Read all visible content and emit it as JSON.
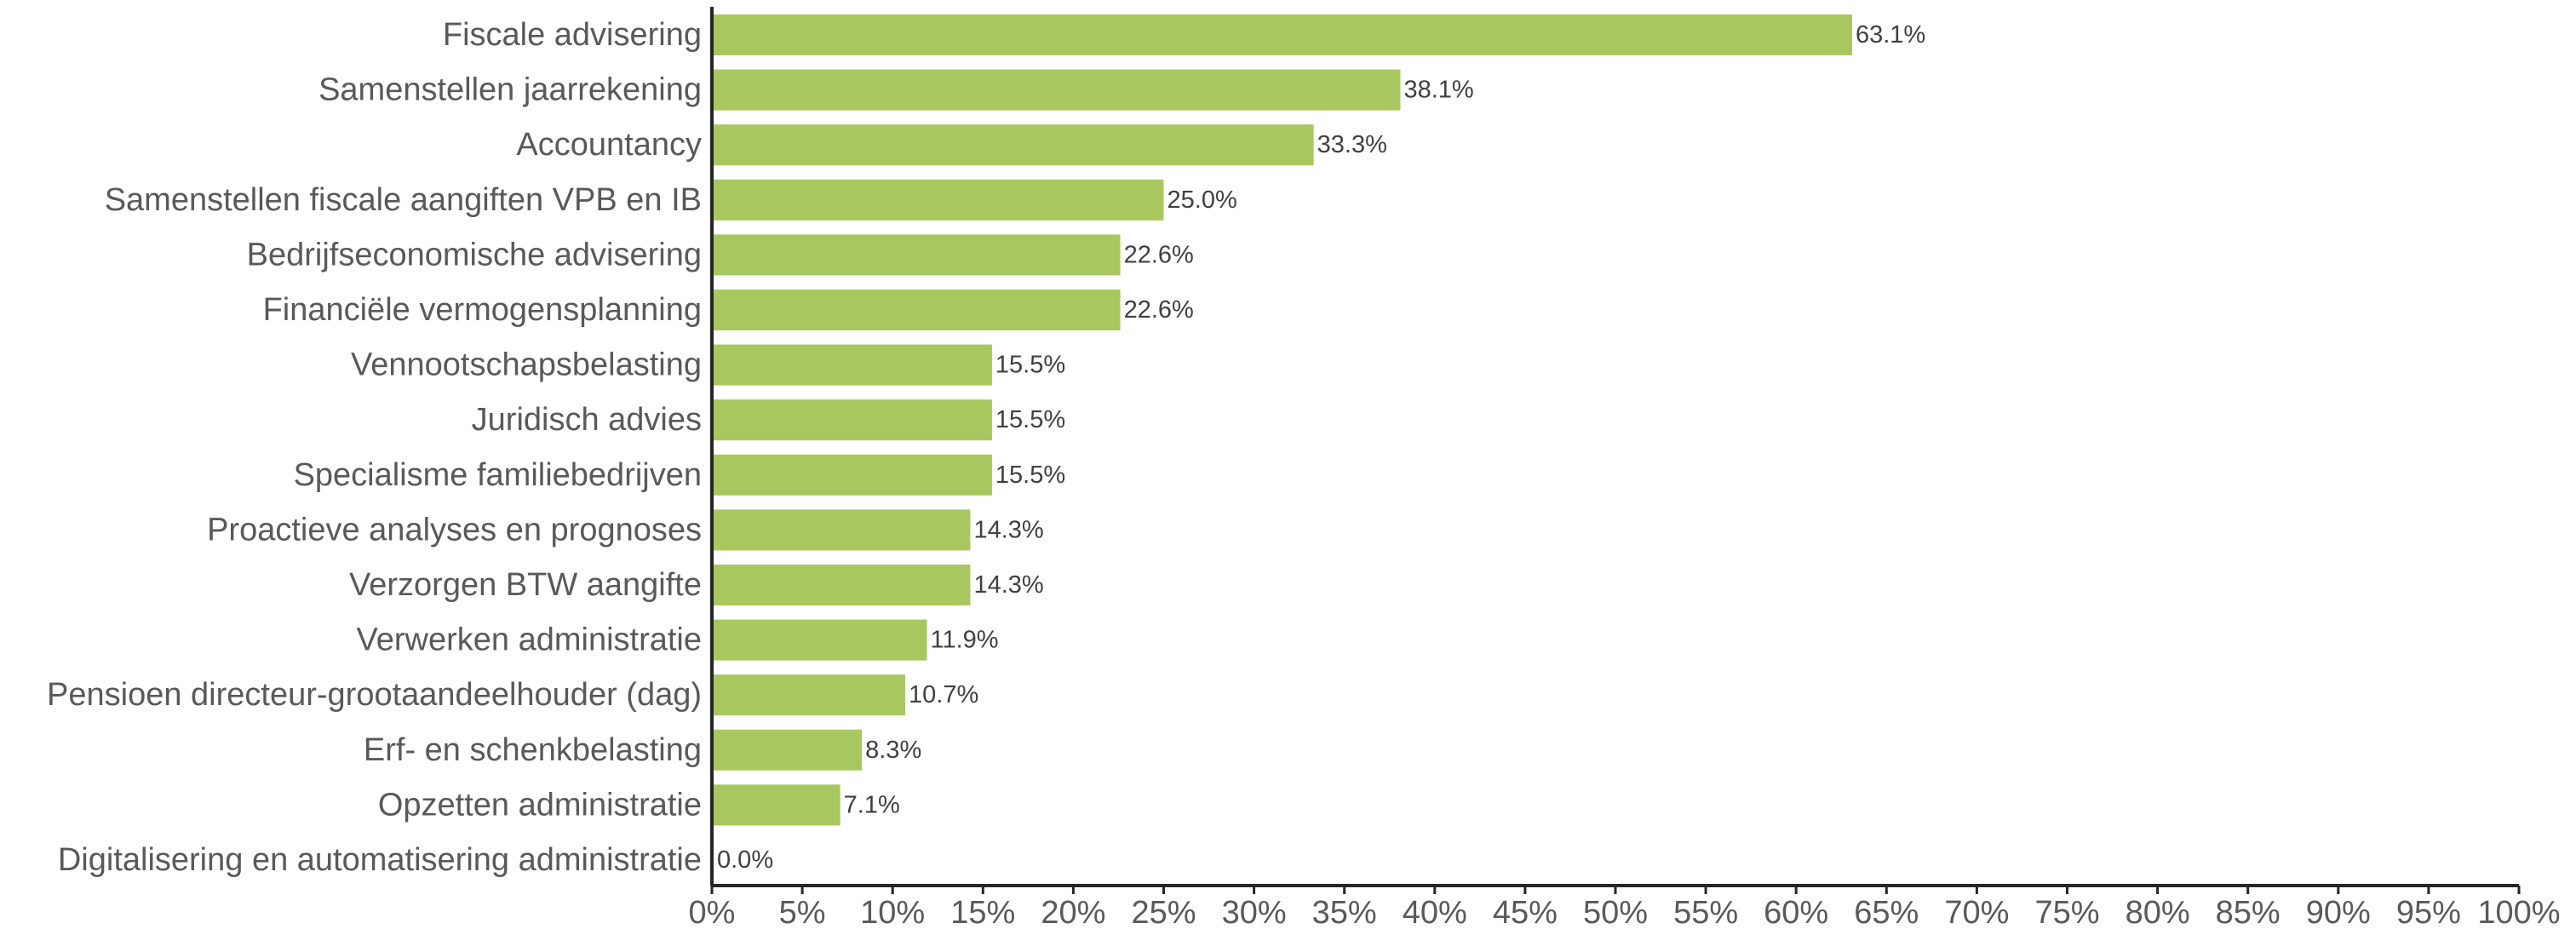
{
  "chart_data": {
    "type": "bar",
    "orientation": "horizontal",
    "categories": [
      "Fiscale advisering",
      "Samenstellen jaarrekening",
      "Accountancy",
      "Samenstellen fiscale aangiften VPB en IB",
      "Bedrijfseconomische advisering",
      "Financiële vermogensplanning",
      "Vennootschapsbelasting",
      "Juridisch advies",
      "Specialisme familiebedrijven",
      "Proactieve analyses en prognoses",
      "Verzorgen BTW aangifte",
      "Verwerken administratie",
      "Pensioen directeur-grootaandeelhouder (dag)",
      "Erf- en schenkbelasting",
      "Opzetten administratie",
      "Digitalisering en automatisering administratie"
    ],
    "values": [
      63.1,
      38.1,
      33.3,
      25.0,
      22.6,
      22.6,
      15.5,
      15.5,
      15.5,
      14.3,
      14.3,
      11.9,
      10.7,
      8.3,
      7.1,
      0.0
    ],
    "data_labels": [
      "63.1%",
      "38.1%",
      "33.3%",
      "25.0%",
      "22.6%",
      "22.6%",
      "15.5%",
      "15.5%",
      "15.5%",
      "14.3%",
      "14.3%",
      "11.9%",
      "10.7%",
      "8.3%",
      "7.1%",
      "0.0%"
    ],
    "xlim": [
      0,
      100
    ],
    "x_ticks": [
      0,
      5,
      10,
      15,
      20,
      25,
      30,
      35,
      40,
      45,
      50,
      55,
      60,
      65,
      70,
      75,
      80,
      85,
      90,
      95,
      100
    ],
    "x_tick_labels": [
      "0%",
      "5%",
      "10%",
      "15%",
      "20%",
      "25%",
      "30%",
      "35%",
      "40%",
      "45%",
      "50%",
      "55%",
      "60%",
      "65%",
      "70%",
      "75%",
      "80%",
      "85%",
      "90%",
      "95%",
      "100%"
    ],
    "title": "",
    "xlabel": "",
    "ylabel": "",
    "grid": false,
    "legend": "none",
    "bar_color": "#a8c85f",
    "axis_color": "#262626",
    "label_color": "#595959"
  }
}
